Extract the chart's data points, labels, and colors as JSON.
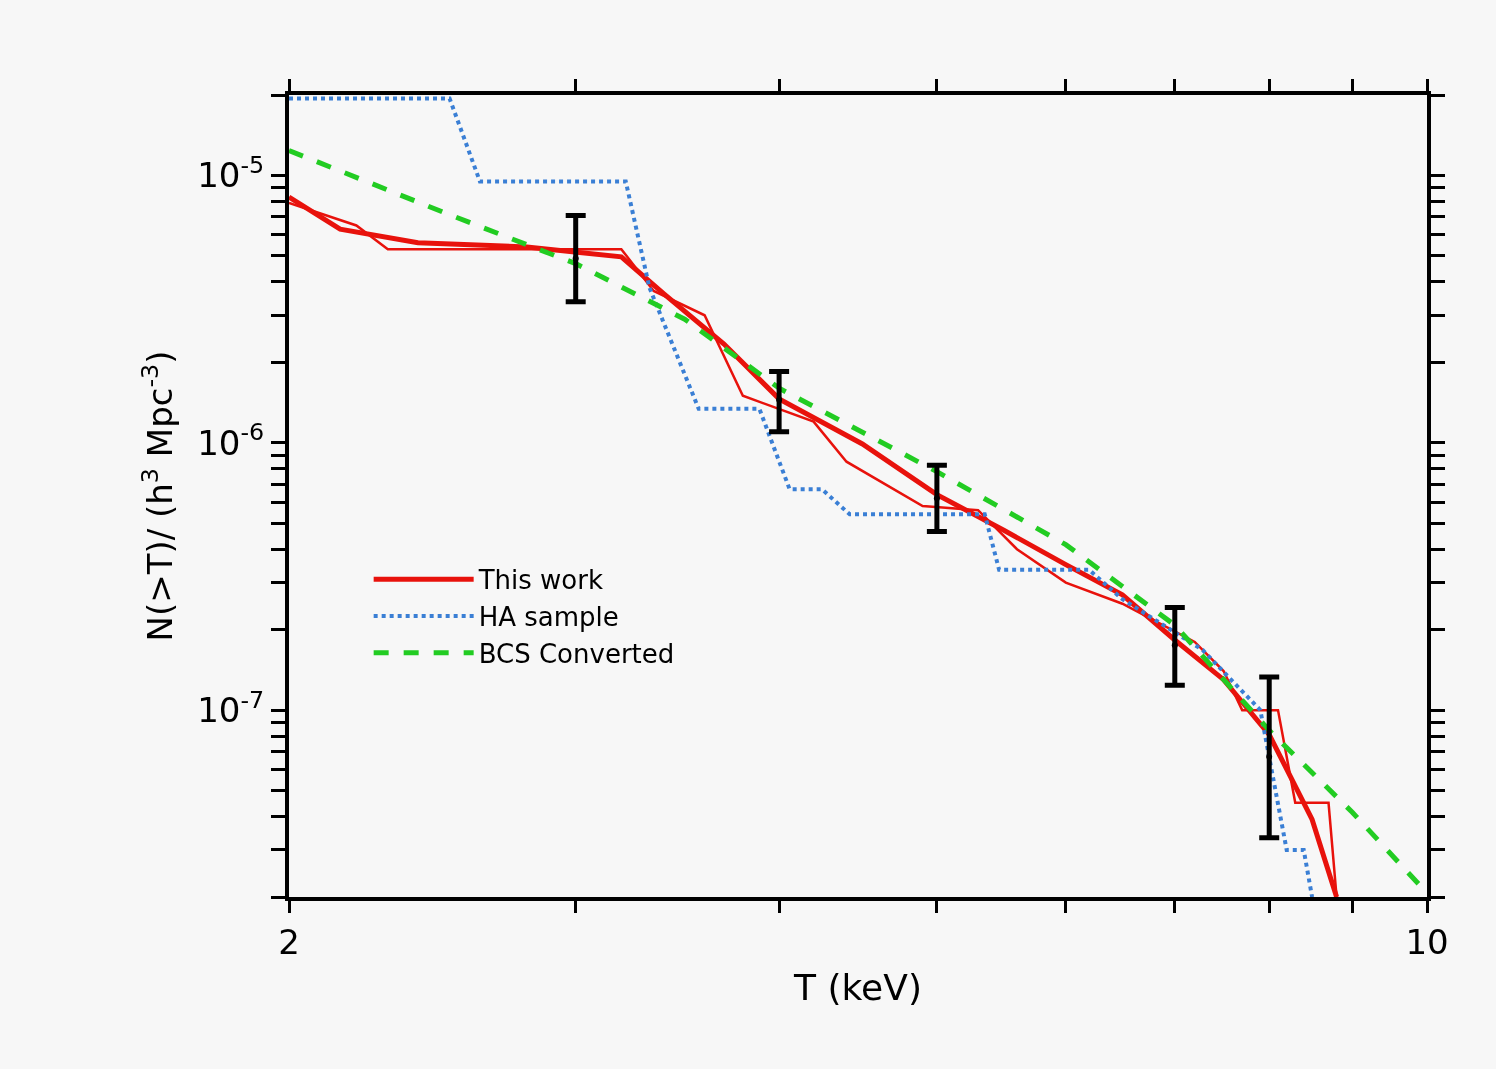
{
  "chart_data": {
    "type": "line",
    "xlabel": "T (keV)",
    "ylabel": "N(>T)/ (h$^{3}$ Mpc$^{-3}$)",
    "log": "xy",
    "grid": false,
    "legend": "left",
    "xlim": [
      2,
      10
    ],
    "ylim": [
      2e-08,
      2e-05
    ],
    "xticks": [
      2,
      {
        "value": 3,
        "label": null
      },
      {
        "value": 4,
        "label": null
      },
      {
        "value": 5,
        "label": null
      },
      {
        "value": 6,
        "label": null
      },
      {
        "value": 7,
        "label": null
      },
      {
        "value": 8,
        "label": null
      },
      {
        "value": 9,
        "label": null
      },
      10
    ],
    "yticks": [
      {
        "value": 2e-08,
        "label": null
      },
      {
        "value": 3e-08,
        "label": null
      },
      {
        "value": 4e-08,
        "label": null
      },
      {
        "value": 5e-08,
        "label": null
      },
      {
        "value": 6e-08,
        "label": null
      },
      {
        "value": 7e-08,
        "label": null
      },
      {
        "value": 8e-08,
        "label": null
      },
      {
        "value": 9e-08,
        "label": null
      },
      {
        "value": 1e-07,
        "label": "10$^{-7}$"
      },
      {
        "value": 2e-07,
        "label": null
      },
      {
        "value": 3e-07,
        "label": null
      },
      {
        "value": 4e-07,
        "label": null
      },
      {
        "value": 5e-07,
        "label": null
      },
      {
        "value": 6e-07,
        "label": null
      },
      {
        "value": 7e-07,
        "label": null
      },
      {
        "value": 8e-07,
        "label": null
      },
      {
        "value": 9e-07,
        "label": null
      },
      {
        "value": 1e-06,
        "label": "10$^{-6}$"
      },
      {
        "value": 2e-06,
        "label": null
      },
      {
        "value": 3e-06,
        "label": null
      },
      {
        "value": 4e-06,
        "label": null
      },
      {
        "value": 5e-06,
        "label": null
      },
      {
        "value": 6e-06,
        "label": null
      },
      {
        "value": 7e-06,
        "label": null
      },
      {
        "value": 8e-06,
        "label": null
      },
      {
        "value": 9e-06,
        "label": null
      },
      {
        "value": 1e-05,
        "label": "10$^{-5}$"
      },
      {
        "value": 2e-05,
        "label": null
      }
    ],
    "series": [
      {
        "name": "This work",
        "color": "#e8120c",
        "line_style": "solid",
        "marker": "none",
        "x": [
          2,
          2.15,
          2.4,
          2.8,
          3.2,
          3.4,
          3.7,
          4.0,
          4.5,
          5,
          5.5,
          6,
          6.5,
          7,
          7.5,
          8,
          8.5,
          8.8
        ],
        "values": [
          8.3e-06,
          6.3e-06,
          5.6e-06,
          5.4e-06,
          4.96e-06,
          3.6e-06,
          2.34e-06,
          1.46e-06,
          9.9e-07,
          6.4e-07,
          4.7e-07,
          3.5e-07,
          2.7e-07,
          1.83e-07,
          1.3e-07,
          8.1e-08,
          3.9e-08,
          2e-08
        ]
      },
      {
        "color": "#e8120c",
        "line_style": "solid",
        "marker": "none",
        "x": [
          2,
          2.2,
          2.3,
          3.2,
          3.35,
          3.6,
          3.8,
          4.2,
          4.4,
          4.9,
          5.3,
          5.6,
          6,
          6.5,
          7.2,
          7.5,
          7.7,
          8.1,
          8.3,
          8.7,
          8.8
        ],
        "values": [
          7.9e-06,
          6.5e-06,
          5.3e-06,
          5.3e-06,
          3.7e-06,
          3e-06,
          1.5e-06,
          1.2e-06,
          8.5e-07,
          5.8e-07,
          5.6e-07,
          4e-07,
          3e-07,
          2.5e-07,
          1.8e-07,
          1.4e-07,
          1e-07,
          1e-07,
          4.5e-08,
          4.5e-08,
          2e-08
        ]
      },
      {
        "name": "HA sample",
        "color": "#3a7fd5",
        "line_style": "dotted",
        "marker": "none",
        "x": [
          2,
          2.51,
          2.62,
          3.22,
          3.33,
          3.57,
          3.89,
          4.06,
          4.25,
          4.42,
          5.35,
          5.46,
          6.2,
          6.5,
          7.28,
          7.9,
          8.2,
          8.4,
          8.5
        ],
        "values": [
          1.94e-05,
          1.94e-05,
          9.5e-06,
          9.5e-06,
          3.8e-06,
          1.34e-06,
          1.34e-06,
          6.7e-07,
          6.7e-07,
          5.4e-07,
          5.4e-07,
          3.35e-07,
          3.35e-07,
          2.6e-07,
          1.68e-07,
          1e-07,
          3e-08,
          3e-08,
          2e-08
        ]
      },
      {
        "name": "BCS Converted",
        "color": "#22cc22",
        "line_style": "dashed",
        "marker": "none",
        "x": [
          2,
          2.5,
          3,
          3.5,
          4,
          5,
          6,
          7,
          8,
          9,
          10
        ],
        "values": [
          1.24e-05,
          7.2e-06,
          4.68e-06,
          2.9e-06,
          1.6e-06,
          7.8e-07,
          4.16e-07,
          2.08e-07,
          8.4e-08,
          4.14e-08,
          2.07e-08
        ]
      },
      {
        "type": "scatter",
        "color": "#000000",
        "marker": "none",
        "x": [
          3,
          4,
          5,
          7,
          8
        ],
        "values": [
          4.89e-06,
          1.45e-06,
          6.2e-07,
          1.75e-07,
          6.7e-08
        ],
        "errors": [
          [
            3.37e-06,
            7.08e-06
          ],
          [
            1.1e-06,
            1.85e-06
          ],
          [
            4.66e-07,
            8.24e-07
          ],
          [
            1.24e-07,
            2.42e-07
          ],
          [
            3.33e-08,
            1.33e-07
          ]
        ]
      }
    ]
  }
}
